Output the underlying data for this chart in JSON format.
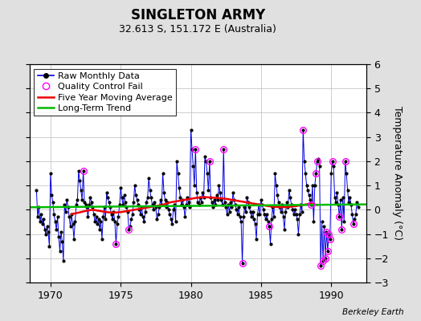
{
  "title": "SINGLETON ARMY",
  "subtitle": "32.613 S, 151.172 E (Australia)",
  "ylabel": "Temperature Anomaly (°C)",
  "xlabel_credit": "Berkeley Earth",
  "ylim": [
    -3,
    6
  ],
  "yticks": [
    -3,
    -2,
    -1,
    0,
    1,
    2,
    3,
    4,
    5,
    6
  ],
  "xlim": [
    1968.5,
    1992.5
  ],
  "xticks": [
    1970,
    1975,
    1980,
    1985,
    1990
  ],
  "bg_color": "#e0e0e0",
  "plot_bg_color": "#ffffff",
  "grid_color": "#bbbbbb",
  "raw_data": [
    [
      1969.0,
      0.8
    ],
    [
      1969.083,
      -0.3
    ],
    [
      1969.167,
      0.1
    ],
    [
      1969.25,
      -0.5
    ],
    [
      1969.333,
      -0.2
    ],
    [
      1969.417,
      -0.6
    ],
    [
      1969.5,
      -0.4
    ],
    [
      1969.583,
      -0.8
    ],
    [
      1969.667,
      -1.0
    ],
    [
      1969.75,
      -0.7
    ],
    [
      1969.833,
      -0.9
    ],
    [
      1969.917,
      -1.5
    ],
    [
      1970.0,
      1.5
    ],
    [
      1970.083,
      0.6
    ],
    [
      1970.167,
      0.3
    ],
    [
      1970.25,
      -0.2
    ],
    [
      1970.333,
      -0.5
    ],
    [
      1970.417,
      -0.8
    ],
    [
      1970.5,
      -0.3
    ],
    [
      1970.583,
      -1.1
    ],
    [
      1970.667,
      -1.7
    ],
    [
      1970.75,
      -0.9
    ],
    [
      1970.833,
      -1.3
    ],
    [
      1970.917,
      -2.1
    ],
    [
      1971.0,
      0.2
    ],
    [
      1971.083,
      -0.1
    ],
    [
      1971.167,
      0.4
    ],
    [
      1971.25,
      0.1
    ],
    [
      1971.333,
      -0.3
    ],
    [
      1971.417,
      -0.7
    ],
    [
      1971.5,
      -0.2
    ],
    [
      1971.583,
      -0.6
    ],
    [
      1971.667,
      -1.2
    ],
    [
      1971.75,
      -0.5
    ],
    [
      1971.833,
      0.2
    ],
    [
      1971.917,
      0.4
    ],
    [
      1972.0,
      1.6
    ],
    [
      1972.083,
      1.2
    ],
    [
      1972.167,
      0.8
    ],
    [
      1972.25,
      0.4
    ],
    [
      1972.333,
      1.6
    ],
    [
      1972.417,
      0.3
    ],
    [
      1972.5,
      0.2
    ],
    [
      1972.583,
      0.1
    ],
    [
      1972.667,
      -0.3
    ],
    [
      1972.75,
      0.2
    ],
    [
      1972.833,
      0.5
    ],
    [
      1972.917,
      0.3
    ],
    [
      1973.0,
      0.1
    ],
    [
      1973.083,
      -0.2
    ],
    [
      1973.167,
      -0.5
    ],
    [
      1973.25,
      -0.3
    ],
    [
      1973.333,
      -0.6
    ],
    [
      1973.417,
      -0.4
    ],
    [
      1973.5,
      -0.8
    ],
    [
      1973.583,
      -0.5
    ],
    [
      1973.667,
      -1.2
    ],
    [
      1973.75,
      -0.3
    ],
    [
      1973.833,
      0.1
    ],
    [
      1973.917,
      -0.4
    ],
    [
      1974.0,
      0.7
    ],
    [
      1974.083,
      0.5
    ],
    [
      1974.167,
      0.3
    ],
    [
      1974.25,
      0.1
    ],
    [
      1974.333,
      -0.2
    ],
    [
      1974.417,
      -0.4
    ],
    [
      1974.5,
      -0.1
    ],
    [
      1974.583,
      -0.5
    ],
    [
      1974.667,
      -1.4
    ],
    [
      1974.75,
      -0.6
    ],
    [
      1974.833,
      -0.3
    ],
    [
      1974.917,
      0.2
    ],
    [
      1975.0,
      0.9
    ],
    [
      1975.083,
      0.5
    ],
    [
      1975.167,
      0.2
    ],
    [
      1975.25,
      0.6
    ],
    [
      1975.333,
      0.3
    ],
    [
      1975.417,
      0.1
    ],
    [
      1975.5,
      -0.1
    ],
    [
      1975.583,
      -0.8
    ],
    [
      1975.667,
      -0.7
    ],
    [
      1975.75,
      -0.4
    ],
    [
      1975.833,
      -0.2
    ],
    [
      1975.917,
      0.3
    ],
    [
      1976.0,
      1.0
    ],
    [
      1976.083,
      0.6
    ],
    [
      1976.167,
      0.4
    ],
    [
      1976.25,
      0.2
    ],
    [
      1976.333,
      0.0
    ],
    [
      1976.417,
      -0.2
    ],
    [
      1976.5,
      0.1
    ],
    [
      1976.583,
      -0.3
    ],
    [
      1976.667,
      -0.5
    ],
    [
      1976.75,
      -0.1
    ],
    [
      1976.833,
      0.3
    ],
    [
      1976.917,
      0.5
    ],
    [
      1977.0,
      1.3
    ],
    [
      1977.083,
      0.8
    ],
    [
      1977.167,
      0.5
    ],
    [
      1977.25,
      0.2
    ],
    [
      1977.333,
      0.0
    ],
    [
      1977.417,
      0.3
    ],
    [
      1977.5,
      0.1
    ],
    [
      1977.583,
      -0.4
    ],
    [
      1977.667,
      -0.2
    ],
    [
      1977.75,
      0.1
    ],
    [
      1977.833,
      0.4
    ],
    [
      1977.917,
      0.2
    ],
    [
      1978.0,
      1.5
    ],
    [
      1978.083,
      0.7
    ],
    [
      1978.167,
      0.4
    ],
    [
      1978.25,
      0.1
    ],
    [
      1978.333,
      0.3
    ],
    [
      1978.417,
      0.0
    ],
    [
      1978.5,
      -0.2
    ],
    [
      1978.583,
      -0.4
    ],
    [
      1978.667,
      -0.6
    ],
    [
      1978.75,
      0.0
    ],
    [
      1978.833,
      0.2
    ],
    [
      1978.917,
      -0.5
    ],
    [
      1979.0,
      2.0
    ],
    [
      1979.083,
      1.5
    ],
    [
      1979.167,
      0.9
    ],
    [
      1979.25,
      0.5
    ],
    [
      1979.333,
      0.2
    ],
    [
      1979.417,
      0.4
    ],
    [
      1979.5,
      0.1
    ],
    [
      1979.583,
      -0.3
    ],
    [
      1979.667,
      0.2
    ],
    [
      1979.75,
      0.5
    ],
    [
      1979.833,
      0.3
    ],
    [
      1979.917,
      0.1
    ],
    [
      1980.0,
      3.3
    ],
    [
      1980.083,
      2.5
    ],
    [
      1980.167,
      1.8
    ],
    [
      1980.25,
      1.0
    ],
    [
      1980.333,
      2.5
    ],
    [
      1980.417,
      0.7
    ],
    [
      1980.5,
      0.3
    ],
    [
      1980.583,
      0.2
    ],
    [
      1980.667,
      0.5
    ],
    [
      1980.75,
      0.3
    ],
    [
      1980.833,
      0.7
    ],
    [
      1980.917,
      0.5
    ],
    [
      1981.0,
      2.2
    ],
    [
      1981.083,
      2.0
    ],
    [
      1981.167,
      1.5
    ],
    [
      1981.25,
      0.8
    ],
    [
      1981.333,
      2.0
    ],
    [
      1981.417,
      0.5
    ],
    [
      1981.5,
      0.3
    ],
    [
      1981.583,
      0.1
    ],
    [
      1981.667,
      0.4
    ],
    [
      1981.75,
      0.2
    ],
    [
      1981.833,
      0.6
    ],
    [
      1981.917,
      0.4
    ],
    [
      1982.0,
      1.0
    ],
    [
      1982.083,
      0.7
    ],
    [
      1982.167,
      0.4
    ],
    [
      1982.25,
      0.2
    ],
    [
      1982.333,
      2.5
    ],
    [
      1982.417,
      0.3
    ],
    [
      1982.5,
      0.1
    ],
    [
      1982.583,
      -0.2
    ],
    [
      1982.667,
      0.2
    ],
    [
      1982.75,
      -0.1
    ],
    [
      1982.833,
      0.3
    ],
    [
      1982.917,
      0.1
    ],
    [
      1983.0,
      0.7
    ],
    [
      1983.083,
      0.4
    ],
    [
      1983.167,
      0.2
    ],
    [
      1983.25,
      0.0
    ],
    [
      1983.333,
      -0.2
    ],
    [
      1983.417,
      0.1
    ],
    [
      1983.5,
      -0.3
    ],
    [
      1983.583,
      -0.5
    ],
    [
      1983.667,
      -2.2
    ],
    [
      1983.75,
      -0.3
    ],
    [
      1983.833,
      0.1
    ],
    [
      1983.917,
      -0.1
    ],
    [
      1984.0,
      0.5
    ],
    [
      1984.083,
      0.3
    ],
    [
      1984.167,
      0.1
    ],
    [
      1984.25,
      -0.1
    ],
    [
      1984.333,
      -0.3
    ],
    [
      1984.417,
      -0.1
    ],
    [
      1984.5,
      -0.4
    ],
    [
      1984.583,
      -0.6
    ],
    [
      1984.667,
      -1.2
    ],
    [
      1984.75,
      -0.2
    ],
    [
      1984.833,
      0.2
    ],
    [
      1984.917,
      -0.2
    ],
    [
      1985.0,
      0.4
    ],
    [
      1985.083,
      0.2
    ],
    [
      1985.167,
      0.0
    ],
    [
      1985.25,
      -0.2
    ],
    [
      1985.333,
      -0.4
    ],
    [
      1985.417,
      -0.2
    ],
    [
      1985.5,
      -0.5
    ],
    [
      1985.583,
      -0.7
    ],
    [
      1985.667,
      -1.4
    ],
    [
      1985.75,
      -0.4
    ],
    [
      1985.833,
      0.1
    ],
    [
      1985.917,
      -0.3
    ],
    [
      1986.0,
      1.5
    ],
    [
      1986.083,
      1.0
    ],
    [
      1986.167,
      0.6
    ],
    [
      1986.25,
      0.3
    ],
    [
      1986.333,
      0.1
    ],
    [
      1986.417,
      -0.1
    ],
    [
      1986.5,
      0.2
    ],
    [
      1986.583,
      -0.3
    ],
    [
      1986.667,
      -0.8
    ],
    [
      1986.75,
      -0.1
    ],
    [
      1986.833,
      0.3
    ],
    [
      1986.917,
      0.1
    ],
    [
      1987.0,
      0.8
    ],
    [
      1987.083,
      0.5
    ],
    [
      1987.167,
      0.2
    ],
    [
      1987.25,
      0.0
    ],
    [
      1987.333,
      -0.2
    ],
    [
      1987.417,
      0.0
    ],
    [
      1987.5,
      -0.2
    ],
    [
      1987.583,
      -0.4
    ],
    [
      1987.667,
      -1.0
    ],
    [
      1987.75,
      -0.2
    ],
    [
      1987.833,
      0.2
    ],
    [
      1987.917,
      -0.1
    ],
    [
      1988.0,
      3.3
    ],
    [
      1988.083,
      2.0
    ],
    [
      1988.167,
      1.5
    ],
    [
      1988.25,
      1.0
    ],
    [
      1988.333,
      0.8
    ],
    [
      1988.417,
      0.6
    ],
    [
      1988.5,
      0.4
    ],
    [
      1988.583,
      0.2
    ],
    [
      1988.667,
      1.0
    ],
    [
      1988.75,
      -0.5
    ],
    [
      1988.833,
      1.0
    ],
    [
      1988.917,
      1.5
    ],
    [
      1989.0,
      2.0
    ],
    [
      1989.083,
      2.1
    ],
    [
      1989.167,
      1.8
    ],
    [
      1989.25,
      -2.3
    ],
    [
      1989.333,
      -0.5
    ],
    [
      1989.417,
      -2.1
    ],
    [
      1989.5,
      -0.7
    ],
    [
      1989.583,
      -2.0
    ],
    [
      1989.667,
      -0.9
    ],
    [
      1989.75,
      -1.7
    ],
    [
      1989.833,
      -1.0
    ],
    [
      1989.917,
      -1.2
    ],
    [
      1990.0,
      1.5
    ],
    [
      1990.083,
      2.0
    ],
    [
      1990.167,
      1.8
    ],
    [
      1990.25,
      0.5
    ],
    [
      1990.333,
      0.3
    ],
    [
      1990.417,
      0.7
    ],
    [
      1990.5,
      0.2
    ],
    [
      1990.583,
      -0.3
    ],
    [
      1990.667,
      0.4
    ],
    [
      1990.75,
      -0.8
    ],
    [
      1990.833,
      0.5
    ],
    [
      1990.917,
      -0.5
    ],
    [
      1991.0,
      2.0
    ],
    [
      1991.083,
      1.5
    ],
    [
      1991.167,
      0.8
    ],
    [
      1991.25,
      0.3
    ],
    [
      1991.333,
      0.5
    ],
    [
      1991.417,
      0.2
    ],
    [
      1991.5,
      -0.2
    ],
    [
      1991.583,
      -0.6
    ],
    [
      1991.667,
      -0.4
    ],
    [
      1991.75,
      -0.2
    ],
    [
      1991.833,
      0.3
    ],
    [
      1991.917,
      0.1
    ]
  ],
  "qc_fail_points": [
    [
      1972.333,
      1.6
    ],
    [
      1974.667,
      -1.4
    ],
    [
      1975.583,
      -0.8
    ],
    [
      1980.333,
      2.5
    ],
    [
      1981.333,
      2.0
    ],
    [
      1982.333,
      2.5
    ],
    [
      1983.667,
      -2.2
    ],
    [
      1985.583,
      -0.7
    ],
    [
      1988.0,
      3.3
    ],
    [
      1988.583,
      0.2
    ],
    [
      1988.917,
      1.5
    ],
    [
      1989.0,
      2.0
    ],
    [
      1989.25,
      -2.3
    ],
    [
      1989.417,
      -2.1
    ],
    [
      1989.583,
      -2.0
    ],
    [
      1989.667,
      -0.9
    ],
    [
      1989.75,
      -1.7
    ],
    [
      1989.833,
      -1.0
    ],
    [
      1989.917,
      -1.2
    ],
    [
      1990.083,
      2.0
    ],
    [
      1990.583,
      -0.3
    ],
    [
      1990.75,
      -0.8
    ],
    [
      1991.0,
      2.0
    ],
    [
      1991.583,
      -0.6
    ]
  ],
  "moving_avg": [
    [
      1971.5,
      -0.18
    ],
    [
      1972.0,
      -0.12
    ],
    [
      1972.5,
      -0.05
    ],
    [
      1973.0,
      0.0
    ],
    [
      1973.5,
      -0.05
    ],
    [
      1974.0,
      -0.1
    ],
    [
      1974.5,
      -0.12
    ],
    [
      1975.0,
      -0.1
    ],
    [
      1975.5,
      -0.05
    ],
    [
      1976.0,
      0.0
    ],
    [
      1976.5,
      0.05
    ],
    [
      1977.0,
      0.1
    ],
    [
      1977.5,
      0.15
    ],
    [
      1978.0,
      0.2
    ],
    [
      1978.5,
      0.3
    ],
    [
      1979.0,
      0.35
    ],
    [
      1979.5,
      0.4
    ],
    [
      1980.0,
      0.45
    ],
    [
      1980.5,
      0.5
    ],
    [
      1981.0,
      0.52
    ],
    [
      1981.5,
      0.5
    ],
    [
      1982.0,
      0.48
    ],
    [
      1982.5,
      0.45
    ],
    [
      1983.0,
      0.4
    ],
    [
      1983.5,
      0.35
    ],
    [
      1984.0,
      0.3
    ],
    [
      1984.5,
      0.25
    ],
    [
      1985.0,
      0.2
    ],
    [
      1985.5,
      0.15
    ],
    [
      1986.0,
      0.12
    ],
    [
      1986.5,
      0.1
    ],
    [
      1987.0,
      0.12
    ],
    [
      1987.5,
      0.15
    ],
    [
      1988.0,
      0.2
    ],
    [
      1988.5,
      0.25
    ],
    [
      1989.0,
      0.2
    ]
  ],
  "trend_line": [
    [
      1968.5,
      0.1
    ],
    [
      1992.5,
      0.22
    ]
  ],
  "line_color": "#0000dd",
  "dot_color": "#000000",
  "qc_color": "#ff00ff",
  "moving_avg_color": "#ee0000",
  "trend_color": "#00bb00",
  "legend_fontsize": 8,
  "title_fontsize": 12,
  "subtitle_fontsize": 9,
  "tick_fontsize": 9,
  "ylabel_fontsize": 9
}
